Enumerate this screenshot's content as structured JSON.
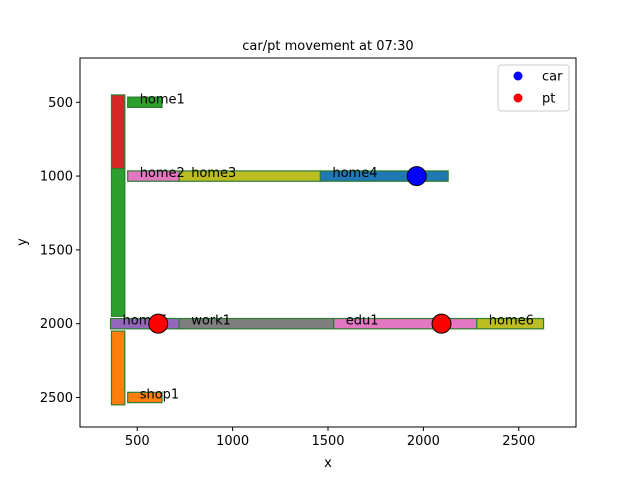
{
  "chart_data": {
    "type": "scatter",
    "title": "car/pt movement at 07:30",
    "xlabel": "x",
    "ylabel": "y",
    "xlim": [
      200,
      2800
    ],
    "ylim": [
      2700,
      200
    ],
    "y_inverted": true,
    "xticks": [
      500,
      1000,
      1500,
      2000,
      2500
    ],
    "yticks": [
      500,
      1000,
      1500,
      2000,
      2500
    ],
    "grid": false,
    "legend": "top-right",
    "links": [
      {
        "orient": "v",
        "x": 400,
        "y0": 450,
        "y1": 950,
        "color": "#d62728",
        "label": ""
      },
      {
        "orient": "v",
        "x": 400,
        "y0": 950,
        "y1": 1950,
        "color": "#2ca02c",
        "label": ""
      },
      {
        "orient": "v",
        "x": 400,
        "y0": 2050,
        "y1": 2550,
        "color": "#ff7f0e",
        "label": ""
      },
      {
        "orient": "h",
        "y": 500,
        "x0": 450,
        "x1": 630,
        "color": "#2ca02c",
        "label": "home1"
      },
      {
        "orient": "h",
        "y": 1000,
        "x0": 450,
        "x1": 720,
        "color": "#e377c2",
        "label": "home2"
      },
      {
        "orient": "h",
        "y": 1000,
        "x0": 720,
        "x1": 1460,
        "color": "#bcbd22",
        "label": "home3"
      },
      {
        "orient": "h",
        "y": 1000,
        "x0": 1460,
        "x1": 2130,
        "color": "#1f77b4",
        "label": "home4"
      },
      {
        "orient": "h",
        "y": 2000,
        "x0": 360,
        "x1": 720,
        "color": "#9467bd",
        "label": "home5"
      },
      {
        "orient": "h",
        "y": 2000,
        "x0": 720,
        "x1": 1530,
        "color": "#7f7f7f",
        "label": "work1"
      },
      {
        "orient": "h",
        "y": 2000,
        "x0": 1530,
        "x1": 2280,
        "color": "#e377c2",
        "label": "edu1"
      },
      {
        "orient": "h",
        "y": 2000,
        "x0": 2280,
        "x1": 2630,
        "color": "#bcbd22",
        "label": "home6"
      },
      {
        "orient": "h",
        "y": 2500,
        "x0": 450,
        "x1": 630,
        "color": "#ff7f0e",
        "label": "shop1"
      }
    ],
    "series": [
      {
        "name": "car",
        "color": "#0000ff",
        "points": [
          {
            "x": 1965,
            "y": 1000
          }
        ]
      },
      {
        "name": "pt",
        "color": "#ff0000",
        "points": [
          {
            "x": 610,
            "y": 2000
          },
          {
            "x": 2095,
            "y": 2000
          }
        ]
      }
    ]
  }
}
